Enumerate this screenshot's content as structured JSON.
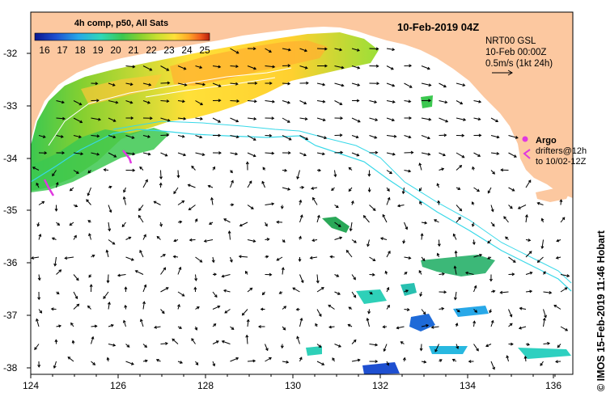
{
  "header": {
    "title": "10-Feb-2019 04Z",
    "composite_label": "4h comp, p50, All Sats",
    "current_source": "NRT00 GSL",
    "current_time": "10-Feb 00:00Z",
    "scale_label": "0.5m/s (1kt 24h)"
  },
  "colorbar": {
    "ticks": [
      "16",
      "17",
      "18",
      "19",
      "20",
      "21",
      "22",
      "23",
      "24",
      "25"
    ],
    "colors": [
      "#0a1690",
      "#1e4fd0",
      "#28a8e8",
      "#2ed8b8",
      "#3cc850",
      "#86d030",
      "#c8e030",
      "#ffe038",
      "#ffa828",
      "#f05a1e",
      "#b81e0c"
    ]
  },
  "legend": {
    "argo_label": "Argo",
    "drifters_line1": "drifters@12h",
    "drifters_line2": "to 10/02-12Z"
  },
  "axes": {
    "lon_ticks": [
      "124",
      "126",
      "128",
      "130",
      "132",
      "134",
      "136"
    ],
    "lat_ticks": [
      "-32",
      "-33",
      "-34",
      "-35",
      "-36",
      "-37",
      "-38"
    ]
  },
  "credit": "© IMOS 15-Feb-2019 11:46 Hobart",
  "colors": {
    "land": "#fcc8a0",
    "sea": "#ffffff",
    "contour": "#38d8e8",
    "drifter": "#e038e0"
  }
}
